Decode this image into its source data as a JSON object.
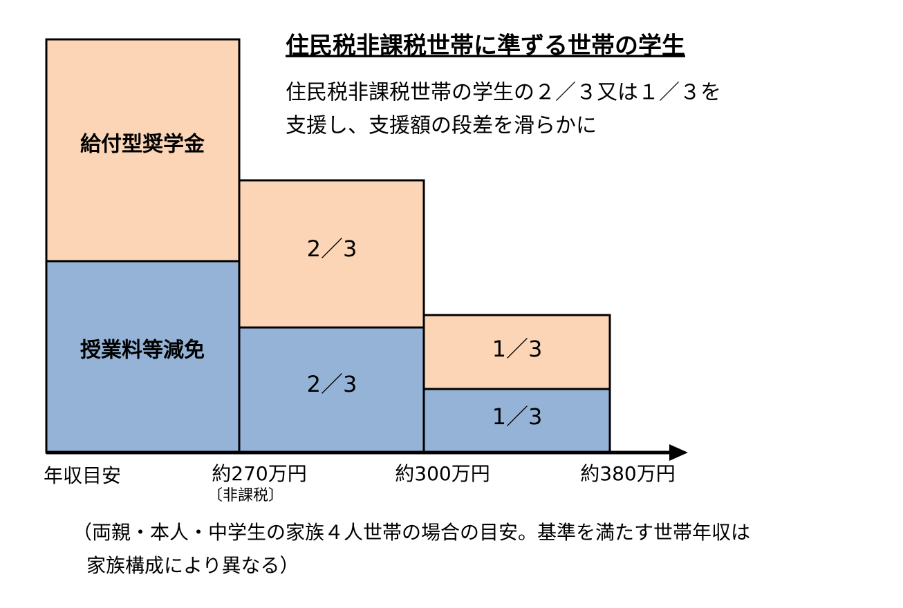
{
  "title": "住民税非課税世帯に準ずる世帯の学生",
  "description": [
    "住民税非課税世帯の学生の２／３又は１／３を",
    "支援し、支援額の段差を滑らかに"
  ],
  "columns": [
    {
      "upper": "給付型奨学金",
      "lower": "授業料等減免"
    },
    {
      "upper": "2／3",
      "lower": "2／3"
    },
    {
      "upper": "1／3",
      "lower": "1／3"
    }
  ],
  "axis": {
    "label": "年収目安",
    "ticks": [
      "約270万円",
      "約300万円",
      "約380万円"
    ],
    "tick_note": "〔非課税〕"
  },
  "footnote": [
    "（両親・本人・中学生の家族４人世帯の場合の目安。基準を満たす世帯年収は",
    "家族構成により異なる）"
  ]
}
